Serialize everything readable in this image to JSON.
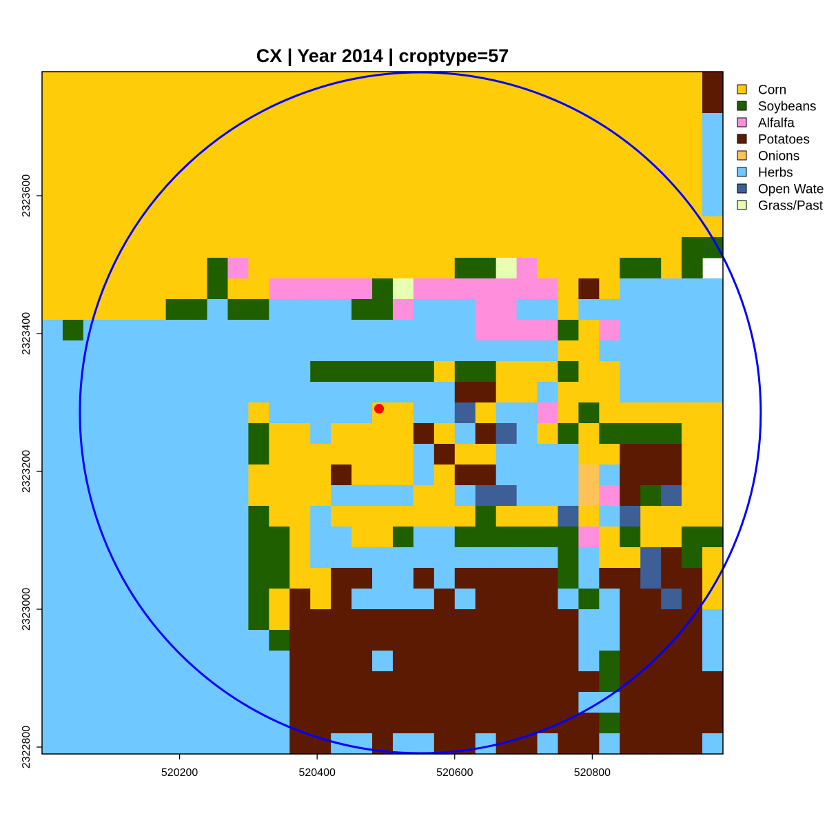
{
  "chart_data": {
    "type": "heatmap",
    "title": "CX | Year 2014 | croptype=57",
    "xlabel": "",
    "ylabel": "",
    "xlim": [
      520000,
      520990
    ],
    "ylim": [
      2322790,
      2323780
    ],
    "cell_size": 30,
    "x_ticks": [
      520200,
      520400,
      520600,
      520800
    ],
    "y_ticks": [
      2322800,
      2323000,
      2323200,
      2323400,
      2323600
    ],
    "legend_position": "right",
    "classes": [
      {
        "code": "C",
        "label": "Corn",
        "color": "#FFCC0A"
      },
      {
        "code": "S",
        "label": "Soybeans",
        "color": "#1F5F00"
      },
      {
        "code": "A",
        "label": "Alfalfa",
        "color": "#FF8FDC"
      },
      {
        "code": "P",
        "label": "Potatoes",
        "color": "#5C1A03"
      },
      {
        "code": "O",
        "label": "Onions",
        "color": "#FFC256"
      },
      {
        "code": "H",
        "label": "Herbs",
        "color": "#6FC8FF"
      },
      {
        "code": "W",
        "label": "Open Wate",
        "color": "#3D5F96"
      },
      {
        "code": "G",
        "label": "Grass/Past",
        "color": "#E6FFB3"
      }
    ],
    "grid_rows_top_to_bottom": [
      "CCCCCCCCCCCCCCCCCCCCCCCCCCCCCCCCP",
      "CCCCCCCCCCCCCCCCCCCCCCCCCCCCCCCCP",
      "CCCCCCCCCCCCCCCCCCCCCCCCCCCCCCCCH",
      "CCCCCCCCCCCCCCCCCCCCCCCCCCCCCCCCH",
      "CCCCCCCCCCCCCCCCCCCCCCCCCCCCCCCCH",
      "CCCCCCCCCCCCCCCCCCCCCCCCCCCCCCCCH",
      "CCCCCCCCCCCCCCCCCCCCCCCCCCCCCCCCH",
      "CCCCCCCCCCCCCCCCCCCCCCCCCCCCCCCCC",
      "CCCCCCCCCCCCCCCCCCCCCCCCCCCCCCCSSS",
      "CCCCCCCCSACCCCCCCCCCSSGACCCCSSCS",
      "CCCCCCCCSCCAAAAASGAAAAAAACPCHHHHHHHH",
      "CCCCCCSSHSSHHHHSSAHHHAAHHCHHHHHHHH",
      "HSHHHHHHHHHHHHHHHHHHHAAAASCAHHHHHH",
      "HHHHHHHHHHHHHHHHHHHHHHHHHCCHHHHHHH",
      "HHHHHHHHHHHHHSSSSSSCSSCCCSCCHHHHHHH",
      "HHHHHHHHHHHHHHHHHHHHPPCCHCCCHHHHHH",
      "HHHHHHHHHHCHHHHHCCHHWCHHACSCCCCCC",
      "HHHHHHHHHHSCCHCCCCPCHPWHCSCSSSSCCCC",
      "HHHHHHHHHHSCCCCCCCHPCCHHHHCCPPPCCCC",
      "HHHHHHHHHHCCCCPCCCHCPPHHHHOHPPPCCCC",
      "HHHHHHHHHHCCCCHHHHCCHWWHHHOAPSWCCCC",
      "HHHHHHHHHHSCCHCCCCCCCSCCCWCHWCCCCCC",
      "HHHHHHHHHHSSCHHCCSHHSSSSSSACSCCSSCC",
      "HHHHHHHHHHSSCHHHHHHHHHHHHSHCCWPSCC",
      "HHHHHHHHHHSSCCPPHHPHPPPPPSHPPWPPCC",
      "HHHHHHHHHHSCPCPHHHHPHPPPPHSHPPWPCCC",
      "HHHHHHHHHHSCPPPPPPPPPPPPPPHHPPPPHCC",
      "HHHHHHHHHHHSPPPPPPPPPPPPPPHHPPPPHCC",
      "HHHHHHHHHHHHPPPPHPPPPPPPPPHSPPPPHHC",
      "HHHHHHHHHHHHPPPPPPPPPPPPPPPSPPPPPHC",
      "HHHHHHHHHHHHPPPPPPPPPPPPPPHHPPPPPHC",
      "HHHHHHHHHHHHPPPPPPPPPPPPPPPSPPPPPHC",
      "HHHHHHHHHHHHPPHHPHHPPHPPHPPHPPPPHHC",
      "HHHHHHHHHHHHPPHHPHHPPHPPHPPHPPPPHHC"
    ],
    "circle": {
      "center": [
        520550,
        2323285
      ],
      "radius": 495,
      "color": "#0000FF"
    },
    "point": {
      "x": 520490,
      "y": 2323291,
      "color": "#FF0000"
    }
  }
}
